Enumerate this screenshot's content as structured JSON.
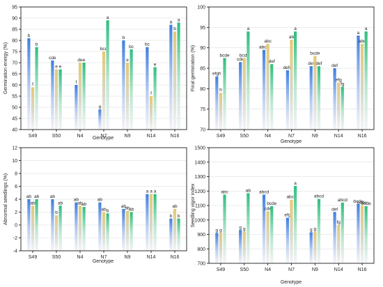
{
  "chart_data": [
    {
      "type": "bar",
      "xlabel": "Genotype",
      "ylabel": "Germination energy (%)",
      "ylim": [
        40,
        95
      ],
      "yticks": [
        40,
        45,
        50,
        55,
        60,
        65,
        70,
        75,
        80,
        85,
        90,
        95
      ],
      "grid": true,
      "categories": [
        "S49",
        "S50",
        "N4",
        "N7",
        "N9",
        "N14",
        "N16"
      ],
      "series": [
        {
          "values": [
            81,
            71,
            60,
            49,
            80,
            77,
            87
          ],
          "letters": [
            "b",
            "cde",
            "f",
            "g",
            "b",
            "bc",
            "a"
          ]
        },
        {
          "values": [
            59,
            67,
            70,
            75,
            70,
            55,
            84
          ],
          "letters": [
            "f",
            "e",
            "de",
            "bcd",
            "e",
            "f",
            "b"
          ]
        },
        {
          "values": [
            77,
            67,
            70,
            89,
            76,
            68,
            88
          ],
          "letters": [
            "b",
            "e",
            "e",
            "a",
            "bc",
            "e",
            "a"
          ]
        }
      ]
    },
    {
      "type": "bar",
      "xlabel": "Genotype",
      "ylabel": "Final germination (%)",
      "ylim": [
        70,
        100
      ],
      "yticks": [
        70,
        75,
        80,
        85,
        90,
        95,
        100
      ],
      "grid": true,
      "categories": [
        "S49",
        "S50",
        "N4",
        "N7",
        "N9",
        "N14",
        "N16"
      ],
      "series": [
        {
          "values": [
            83,
            86.5,
            89.5,
            84.5,
            85.5,
            85,
            93
          ],
          "letters": [
            "efgh",
            "cde",
            "abcd",
            "defg",
            "def",
            "def",
            "a"
          ]
        },
        {
          "values": [
            79,
            87.5,
            91,
            92,
            88,
            81.5,
            91
          ],
          "letters": [
            "h",
            "bcde",
            "abc",
            "ab",
            "bcde",
            "efg",
            "abc"
          ]
        },
        {
          "values": [
            87.5,
            94,
            86,
            94,
            85.5,
            80.5,
            94
          ],
          "letters": [
            "bcde",
            "a",
            "def",
            "a",
            "def",
            "fg",
            "a"
          ]
        }
      ]
    },
    {
      "type": "bar",
      "xlabel": "Genotype",
      "ylabel": "Abnormal seedlings (%)",
      "ylim": [
        -4,
        12
      ],
      "yticks": [
        -4,
        -2,
        0,
        2,
        4,
        6,
        8,
        10,
        12
      ],
      "grid": true,
      "categories": [
        "S49",
        "S50",
        "N4",
        "N7",
        "N9",
        "N14",
        "N16"
      ],
      "series": [
        {
          "values": [
            4,
            4,
            3.5,
            3.5,
            2.5,
            4.8,
            1
          ],
          "letters": [
            "ab",
            "ab",
            "ab",
            "ab",
            "ab",
            "a",
            "b"
          ]
        },
        {
          "values": [
            3,
            1.5,
            3,
            2,
            2.2,
            4.8,
            2.5
          ],
          "letters": [
            "ab",
            "b",
            "ab",
            "ab",
            "ab",
            "a",
            "ab"
          ]
        },
        {
          "values": [
            4,
            3,
            2.8,
            1.8,
            2,
            4.8,
            1
          ],
          "letters": [
            "ab",
            "ab",
            "ab",
            "b",
            "ab",
            "a",
            "b"
          ]
        }
      ]
    },
    {
      "type": "bar",
      "xlabel": "Genotype",
      "ylabel": "Seedling vigor index",
      "ylim": [
        700,
        1500
      ],
      "yticks": [
        700,
        800,
        900,
        1000,
        1100,
        1200,
        1300,
        1400,
        1500
      ],
      "grid": true,
      "categories": [
        "S49",
        "S50",
        "N4",
        "N7",
        "N9",
        "N14",
        "N16"
      ],
      "series": [
        {
          "values": [
            910,
            930,
            1175,
            1015,
            915,
            1055,
            1110
          ],
          "letters": [
            "g",
            "g",
            "abcd",
            "efg",
            "g",
            "def",
            "bcde"
          ]
        },
        {
          "values": [
            910,
            920,
            1060,
            1140,
            920,
            965,
            1100
          ],
          "letters": [
            "g",
            "g",
            "cde",
            "abcd",
            "g",
            "fg",
            "bcde"
          ]
        },
        {
          "values": [
            1175,
            1185,
            1095,
            1235,
            1145,
            1120,
            1095
          ],
          "letters": [
            "abc",
            "ab",
            "bcde",
            "a",
            "abcd",
            "abcd",
            "bcde"
          ]
        }
      ]
    }
  ],
  "colors": {
    "series": [
      {
        "top": "#3f7fe0",
        "mid": "#b8ccf0",
        "bottom": "#f4f4f6"
      },
      {
        "top": "#e5c873",
        "mid": "#d8d8c8",
        "bottom": "#f4f4f6"
      },
      {
        "top": "#2dbf7f",
        "mid": "#b8e6cf",
        "bottom": "#f4f4f6"
      }
    ]
  }
}
